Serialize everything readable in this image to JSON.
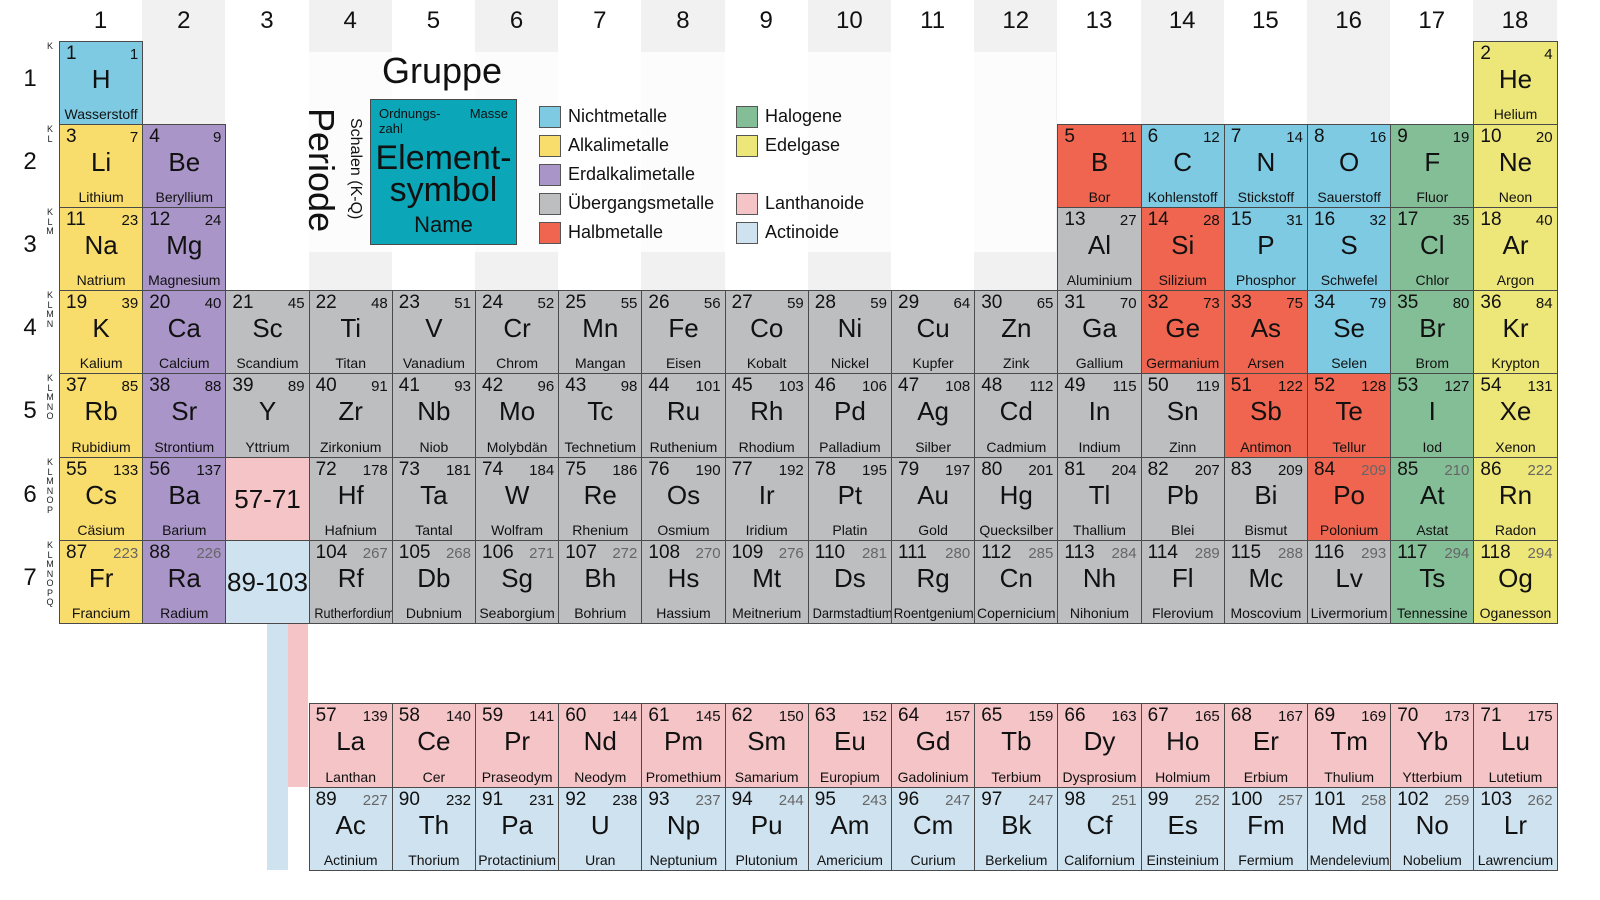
{
  "groups": [
    "1",
    "2",
    "3",
    "4",
    "5",
    "6",
    "7",
    "8",
    "9",
    "10",
    "11",
    "12",
    "13",
    "14",
    "15",
    "16",
    "17",
    "18"
  ],
  "periods": [
    "1",
    "2",
    "3",
    "4",
    "5",
    "6",
    "7"
  ],
  "shell_letters": "KLMNOPQ",
  "colors": {
    "nm": "#7ecae3",
    "alk": "#f8dc6c",
    "ea": "#a995c8",
    "tm": "#bcbec0",
    "hm": "#f0654f",
    "hal": "#84be97",
    "ng": "#ede678",
    "la": "#f4c4c7",
    "ac": "#cfe2ef",
    "key": "#0ba6b8",
    "stripe": "#f1f1f1"
  },
  "legend": {
    "gruppe": "Gruppe",
    "periode": "Periode",
    "schalen": "Schalen (K-Q)",
    "key": {
      "ordnungszahl_1": "Ordnungs-",
      "ordnungszahl_2": "zahl",
      "masse": "Masse",
      "symbol_1": "Element-",
      "symbol_2": "symbol",
      "name": "Name"
    },
    "items": [
      {
        "cat": "nm",
        "label": "Nichtmetalle"
      },
      {
        "cat": "alk",
        "label": "Alkalimetalle"
      },
      {
        "cat": "ea",
        "label": "Erdalkalimetalle"
      },
      {
        "cat": "tm",
        "label": "Übergangsmetalle"
      },
      {
        "cat": "hm",
        "label": "Halbmetalle"
      },
      {
        "cat": "hal",
        "label": "Halogene"
      },
      {
        "cat": "ng",
        "label": "Edelgase"
      },
      {
        "cat": "la",
        "label": "Lanthanoide"
      },
      {
        "cat": "ac",
        "label": "Actinoide"
      }
    ]
  },
  "placeholders": [
    {
      "label": "57-71",
      "cat": "la",
      "p": 6,
      "g": 3
    },
    {
      "label": "89-103",
      "cat": "ac",
      "p": 7,
      "g": 3
    }
  ],
  "elements": [
    {
      "z": "1",
      "s": "H",
      "n": "Wasserstoff",
      "m": "1",
      "c": "nm",
      "p": 1,
      "g": 1
    },
    {
      "z": "2",
      "s": "He",
      "n": "Helium",
      "m": "4",
      "c": "ng",
      "p": 1,
      "g": 18
    },
    {
      "z": "3",
      "s": "Li",
      "n": "Lithium",
      "m": "7",
      "c": "alk",
      "p": 2,
      "g": 1
    },
    {
      "z": "4",
      "s": "Be",
      "n": "Beryllium",
      "m": "9",
      "c": "ea",
      "p": 2,
      "g": 2
    },
    {
      "z": "5",
      "s": "B",
      "n": "Bor",
      "m": "11",
      "c": "hm",
      "p": 2,
      "g": 13
    },
    {
      "z": "6",
      "s": "C",
      "n": "Kohlenstoff",
      "m": "12",
      "c": "nm",
      "p": 2,
      "g": 14
    },
    {
      "z": "7",
      "s": "N",
      "n": "Stickstoff",
      "m": "14",
      "c": "nm",
      "p": 2,
      "g": 15
    },
    {
      "z": "8",
      "s": "O",
      "n": "Sauerstoff",
      "m": "16",
      "c": "nm",
      "p": 2,
      "g": 16
    },
    {
      "z": "9",
      "s": "F",
      "n": "Fluor",
      "m": "19",
      "c": "hal",
      "p": 2,
      "g": 17
    },
    {
      "z": "10",
      "s": "Ne",
      "n": "Neon",
      "m": "20",
      "c": "ng",
      "p": 2,
      "g": 18
    },
    {
      "z": "11",
      "s": "Na",
      "n": "Natrium",
      "m": "23",
      "c": "alk",
      "p": 3,
      "g": 1
    },
    {
      "z": "12",
      "s": "Mg",
      "n": "Magnesium",
      "m": "24",
      "c": "ea",
      "p": 3,
      "g": 2
    },
    {
      "z": "13",
      "s": "Al",
      "n": "Aluminium",
      "m": "27",
      "c": "tm",
      "p": 3,
      "g": 13
    },
    {
      "z": "14",
      "s": "Si",
      "n": "Silizium",
      "m": "28",
      "c": "hm",
      "p": 3,
      "g": 14
    },
    {
      "z": "15",
      "s": "P",
      "n": "Phosphor",
      "m": "31",
      "c": "nm",
      "p": 3,
      "g": 15
    },
    {
      "z": "16",
      "s": "S",
      "n": "Schwefel",
      "m": "32",
      "c": "nm",
      "p": 3,
      "g": 16
    },
    {
      "z": "17",
      "s": "Cl",
      "n": "Chlor",
      "m": "35",
      "c": "hal",
      "p": 3,
      "g": 17
    },
    {
      "z": "18",
      "s": "Ar",
      "n": "Argon",
      "m": "40",
      "c": "ng",
      "p": 3,
      "g": 18
    },
    {
      "z": "19",
      "s": "K",
      "n": "Kalium",
      "m": "39",
      "c": "alk",
      "p": 4,
      "g": 1
    },
    {
      "z": "20",
      "s": "Ca",
      "n": "Calcium",
      "m": "40",
      "c": "ea",
      "p": 4,
      "g": 2
    },
    {
      "z": "21",
      "s": "Sc",
      "n": "Scandium",
      "m": "45",
      "c": "tm",
      "p": 4,
      "g": 3
    },
    {
      "z": "22",
      "s": "Ti",
      "n": "Titan",
      "m": "48",
      "c": "tm",
      "p": 4,
      "g": 4
    },
    {
      "z": "23",
      "s": "V",
      "n": "Vanadium",
      "m": "51",
      "c": "tm",
      "p": 4,
      "g": 5
    },
    {
      "z": "24",
      "s": "Cr",
      "n": "Chrom",
      "m": "52",
      "c": "tm",
      "p": 4,
      "g": 6
    },
    {
      "z": "25",
      "s": "Mn",
      "n": "Mangan",
      "m": "55",
      "c": "tm",
      "p": 4,
      "g": 7
    },
    {
      "z": "26",
      "s": "Fe",
      "n": "Eisen",
      "m": "56",
      "c": "tm",
      "p": 4,
      "g": 8
    },
    {
      "z": "27",
      "s": "Co",
      "n": "Kobalt",
      "m": "59",
      "c": "tm",
      "p": 4,
      "g": 9
    },
    {
      "z": "28",
      "s": "Ni",
      "n": "Nickel",
      "m": "59",
      "c": "tm",
      "p": 4,
      "g": 10
    },
    {
      "z": "29",
      "s": "Cu",
      "n": "Kupfer",
      "m": "64",
      "c": "tm",
      "p": 4,
      "g": 11
    },
    {
      "z": "30",
      "s": "Zn",
      "n": "Zink",
      "m": "65",
      "c": "tm",
      "p": 4,
      "g": 12
    },
    {
      "z": "31",
      "s": "Ga",
      "n": "Gallium",
      "m": "70",
      "c": "tm",
      "p": 4,
      "g": 13
    },
    {
      "z": "32",
      "s": "Ge",
      "n": "Germanium",
      "m": "73",
      "c": "hm",
      "p": 4,
      "g": 14
    },
    {
      "z": "33",
      "s": "As",
      "n": "Arsen",
      "m": "75",
      "c": "hm",
      "p": 4,
      "g": 15
    },
    {
      "z": "34",
      "s": "Se",
      "n": "Selen",
      "m": "79",
      "c": "nm",
      "p": 4,
      "g": 16
    },
    {
      "z": "35",
      "s": "Br",
      "n": "Brom",
      "m": "80",
      "c": "hal",
      "p": 4,
      "g": 17
    },
    {
      "z": "36",
      "s": "Kr",
      "n": "Krypton",
      "m": "84",
      "c": "ng",
      "p": 4,
      "g": 18
    },
    {
      "z": "37",
      "s": "Rb",
      "n": "Rubidium",
      "m": "85",
      "c": "alk",
      "p": 5,
      "g": 1
    },
    {
      "z": "38",
      "s": "Sr",
      "n": "Strontium",
      "m": "88",
      "c": "ea",
      "p": 5,
      "g": 2
    },
    {
      "z": "39",
      "s": "Y",
      "n": "Yttrium",
      "m": "89",
      "c": "tm",
      "p": 5,
      "g": 3
    },
    {
      "z": "40",
      "s": "Zr",
      "n": "Zirkonium",
      "m": "91",
      "c": "tm",
      "p": 5,
      "g": 4
    },
    {
      "z": "41",
      "s": "Nb",
      "n": "Niob",
      "m": "93",
      "c": "tm",
      "p": 5,
      "g": 5
    },
    {
      "z": "42",
      "s": "Mo",
      "n": "Molybdän",
      "m": "96",
      "c": "tm",
      "p": 5,
      "g": 6
    },
    {
      "z": "43",
      "s": "Tc",
      "n": "Technetium",
      "m": "98",
      "c": "tm",
      "p": 5,
      "g": 7
    },
    {
      "z": "44",
      "s": "Ru",
      "n": "Ruthenium",
      "m": "101",
      "c": "tm",
      "p": 5,
      "g": 8
    },
    {
      "z": "45",
      "s": "Rh",
      "n": "Rhodium",
      "m": "103",
      "c": "tm",
      "p": 5,
      "g": 9
    },
    {
      "z": "46",
      "s": "Pd",
      "n": "Palladium",
      "m": "106",
      "c": "tm",
      "p": 5,
      "g": 10
    },
    {
      "z": "47",
      "s": "Ag",
      "n": "Silber",
      "m": "108",
      "c": "tm",
      "p": 5,
      "g": 11
    },
    {
      "z": "48",
      "s": "Cd",
      "n": "Cadmium",
      "m": "112",
      "c": "tm",
      "p": 5,
      "g": 12
    },
    {
      "z": "49",
      "s": "In",
      "n": "Indium",
      "m": "115",
      "c": "tm",
      "p": 5,
      "g": 13
    },
    {
      "z": "50",
      "s": "Sn",
      "n": "Zinn",
      "m": "119",
      "c": "tm",
      "p": 5,
      "g": 14
    },
    {
      "z": "51",
      "s": "Sb",
      "n": "Antimon",
      "m": "122",
      "c": "hm",
      "p": 5,
      "g": 15
    },
    {
      "z": "52",
      "s": "Te",
      "n": "Tellur",
      "m": "128",
      "c": "hm",
      "p": 5,
      "g": 16
    },
    {
      "z": "53",
      "s": "I",
      "n": "Iod",
      "m": "127",
      "c": "hal",
      "p": 5,
      "g": 17
    },
    {
      "z": "54",
      "s": "Xe",
      "n": "Xenon",
      "m": "131",
      "c": "ng",
      "p": 5,
      "g": 18
    },
    {
      "z": "55",
      "s": "Cs",
      "n": "Cäsium",
      "m": "133",
      "c": "alk",
      "p": 6,
      "g": 1
    },
    {
      "z": "56",
      "s": "Ba",
      "n": "Barium",
      "m": "137",
      "c": "ea",
      "p": 6,
      "g": 2
    },
    {
      "z": "72",
      "s": "Hf",
      "n": "Hafnium",
      "m": "178",
      "c": "tm",
      "p": 6,
      "g": 4
    },
    {
      "z": "73",
      "s": "Ta",
      "n": "Tantal",
      "m": "181",
      "c": "tm",
      "p": 6,
      "g": 5
    },
    {
      "z": "74",
      "s": "W",
      "n": "Wolfram",
      "m": "184",
      "c": "tm",
      "p": 6,
      "g": 6
    },
    {
      "z": "75",
      "s": "Re",
      "n": "Rhenium",
      "m": "186",
      "c": "tm",
      "p": 6,
      "g": 7
    },
    {
      "z": "76",
      "s": "Os",
      "n": "Osmium",
      "m": "190",
      "c": "tm",
      "p": 6,
      "g": 8
    },
    {
      "z": "77",
      "s": "Ir",
      "n": "Iridium",
      "m": "192",
      "c": "tm",
      "p": 6,
      "g": 9
    },
    {
      "z": "78",
      "s": "Pt",
      "n": "Platin",
      "m": "195",
      "c": "tm",
      "p": 6,
      "g": 10
    },
    {
      "z": "79",
      "s": "Au",
      "n": "Gold",
      "m": "197",
      "c": "tm",
      "p": 6,
      "g": 11
    },
    {
      "z": "80",
      "s": "Hg",
      "n": "Quecksilber",
      "m": "201",
      "c": "tm",
      "p": 6,
      "g": 12
    },
    {
      "z": "81",
      "s": "Tl",
      "n": "Thallium",
      "m": "204",
      "c": "tm",
      "p": 6,
      "g": 13
    },
    {
      "z": "82",
      "s": "Pb",
      "n": "Blei",
      "m": "207",
      "c": "tm",
      "p": 6,
      "g": 14
    },
    {
      "z": "83",
      "s": "Bi",
      "n": "Bismut",
      "m": "209",
      "c": "tm",
      "p": 6,
      "g": 15
    },
    {
      "z": "84",
      "s": "Po",
      "n": "Polonium",
      "m": "209",
      "c": "hm",
      "p": 6,
      "g": 16,
      "gray": true
    },
    {
      "z": "85",
      "s": "At",
      "n": "Astat",
      "m": "210",
      "c": "hal",
      "p": 6,
      "g": 17,
      "gray": true
    },
    {
      "z": "86",
      "s": "Rn",
      "n": "Radon",
      "m": "222",
      "c": "ng",
      "p": 6,
      "g": 18,
      "gray": true
    },
    {
      "z": "87",
      "s": "Fr",
      "n": "Francium",
      "m": "223",
      "c": "alk",
      "p": 7,
      "g": 1,
      "gray": true
    },
    {
      "z": "88",
      "s": "Ra",
      "n": "Radium",
      "m": "226",
      "c": "ea",
      "p": 7,
      "g": 2,
      "gray": true
    },
    {
      "z": "104",
      "s": "Rf",
      "n": "Rutherfordium",
      "m": "267",
      "c": "tm",
      "p": 7,
      "g": 4,
      "gray": true
    },
    {
      "z": "105",
      "s": "Db",
      "n": "Dubnium",
      "m": "268",
      "c": "tm",
      "p": 7,
      "g": 5,
      "gray": true
    },
    {
      "z": "106",
      "s": "Sg",
      "n": "Seaborgium",
      "m": "271",
      "c": "tm",
      "p": 7,
      "g": 6,
      "gray": true
    },
    {
      "z": "107",
      "s": "Bh",
      "n": "Bohrium",
      "m": "272",
      "c": "tm",
      "p": 7,
      "g": 7,
      "gray": true
    },
    {
      "z": "108",
      "s": "Hs",
      "n": "Hassium",
      "m": "270",
      "c": "tm",
      "p": 7,
      "g": 8,
      "gray": true
    },
    {
      "z": "109",
      "s": "Mt",
      "n": "Meitnerium",
      "m": "276",
      "c": "tm",
      "p": 7,
      "g": 9,
      "gray": true
    },
    {
      "z": "110",
      "s": "Ds",
      "n": "Darmstadtium",
      "m": "281",
      "c": "tm",
      "p": 7,
      "g": 10,
      "gray": true
    },
    {
      "z": "111",
      "s": "Rg",
      "n": "Roentgenium",
      "m": "280",
      "c": "tm",
      "p": 7,
      "g": 11,
      "gray": true
    },
    {
      "z": "112",
      "s": "Cn",
      "n": "Copernicium",
      "m": "285",
      "c": "tm",
      "p": 7,
      "g": 12,
      "gray": true
    },
    {
      "z": "113",
      "s": "Nh",
      "n": "Nihonium",
      "m": "284",
      "c": "tm",
      "p": 7,
      "g": 13,
      "gray": true
    },
    {
      "z": "114",
      "s": "Fl",
      "n": "Flerovium",
      "m": "289",
      "c": "tm",
      "p": 7,
      "g": 14,
      "gray": true
    },
    {
      "z": "115",
      "s": "Mc",
      "n": "Moscovium",
      "m": "288",
      "c": "tm",
      "p": 7,
      "g": 15,
      "gray": true
    },
    {
      "z": "116",
      "s": "Lv",
      "n": "Livermorium",
      "m": "293",
      "c": "tm",
      "p": 7,
      "g": 16,
      "gray": true
    },
    {
      "z": "117",
      "s": "Ts",
      "n": "Tennessine",
      "m": "294",
      "c": "hal",
      "p": 7,
      "g": 17,
      "gray": true
    },
    {
      "z": "118",
      "s": "Og",
      "n": "Oganesson",
      "m": "294",
      "c": "ng",
      "p": 7,
      "g": 18,
      "gray": true
    },
    {
      "z": "57",
      "s": "La",
      "n": "Lanthan",
      "m": "139",
      "c": "la",
      "p": "la",
      "g": 4
    },
    {
      "z": "58",
      "s": "Ce",
      "n": "Cer",
      "m": "140",
      "c": "la",
      "p": "la",
      "g": 5
    },
    {
      "z": "59",
      "s": "Pr",
      "n": "Praseodym",
      "m": "141",
      "c": "la",
      "p": "la",
      "g": 6
    },
    {
      "z": "60",
      "s": "Nd",
      "n": "Neodym",
      "m": "144",
      "c": "la",
      "p": "la",
      "g": 7
    },
    {
      "z": "61",
      "s": "Pm",
      "n": "Promethium",
      "m": "145",
      "c": "la",
      "p": "la",
      "g": 8
    },
    {
      "z": "62",
      "s": "Sm",
      "n": "Samarium",
      "m": "150",
      "c": "la",
      "p": "la",
      "g": 9
    },
    {
      "z": "63",
      "s": "Eu",
      "n": "Europium",
      "m": "152",
      "c": "la",
      "p": "la",
      "g": 10
    },
    {
      "z": "64",
      "s": "Gd",
      "n": "Gadolinium",
      "m": "157",
      "c": "la",
      "p": "la",
      "g": 11
    },
    {
      "z": "65",
      "s": "Tb",
      "n": "Terbium",
      "m": "159",
      "c": "la",
      "p": "la",
      "g": 12
    },
    {
      "z": "66",
      "s": "Dy",
      "n": "Dysprosium",
      "m": "163",
      "c": "la",
      "p": "la",
      "g": 13
    },
    {
      "z": "67",
      "s": "Ho",
      "n": "Holmium",
      "m": "165",
      "c": "la",
      "p": "la",
      "g": 14
    },
    {
      "z": "68",
      "s": "Er",
      "n": "Erbium",
      "m": "167",
      "c": "la",
      "p": "la",
      "g": 15
    },
    {
      "z": "69",
      "s": "Tm",
      "n": "Thulium",
      "m": "169",
      "c": "la",
      "p": "la",
      "g": 16
    },
    {
      "z": "70",
      "s": "Yb",
      "n": "Ytterbium",
      "m": "173",
      "c": "la",
      "p": "la",
      "g": 17
    },
    {
      "z": "71",
      "s": "Lu",
      "n": "Lutetium",
      "m": "175",
      "c": "la",
      "p": "la",
      "g": 18
    },
    {
      "z": "89",
      "s": "Ac",
      "n": "Actinium",
      "m": "227",
      "c": "ac",
      "p": "ac",
      "g": 4,
      "gray": true
    },
    {
      "z": "90",
      "s": "Th",
      "n": "Thorium",
      "m": "232",
      "c": "ac",
      "p": "ac",
      "g": 5
    },
    {
      "z": "91",
      "s": "Pa",
      "n": "Protactinium",
      "m": "231",
      "c": "ac",
      "p": "ac",
      "g": 6
    },
    {
      "z": "92",
      "s": "U",
      "n": "Uran",
      "m": "238",
      "c": "ac",
      "p": "ac",
      "g": 7
    },
    {
      "z": "93",
      "s": "Np",
      "n": "Neptunium",
      "m": "237",
      "c": "ac",
      "p": "ac",
      "g": 8,
      "gray": true
    },
    {
      "z": "94",
      "s": "Pu",
      "n": "Plutonium",
      "m": "244",
      "c": "ac",
      "p": "ac",
      "g": 9,
      "gray": true
    },
    {
      "z": "95",
      "s": "Am",
      "n": "Americium",
      "m": "243",
      "c": "ac",
      "p": "ac",
      "g": 10,
      "gray": true
    },
    {
      "z": "96",
      "s": "Cm",
      "n": "Curium",
      "m": "247",
      "c": "ac",
      "p": "ac",
      "g": 11,
      "gray": true
    },
    {
      "z": "97",
      "s": "Bk",
      "n": "Berkelium",
      "m": "247",
      "c": "ac",
      "p": "ac",
      "g": 12,
      "gray": true
    },
    {
      "z": "98",
      "s": "Cf",
      "n": "Californium",
      "m": "251",
      "c": "ac",
      "p": "ac",
      "g": 13,
      "gray": true
    },
    {
      "z": "99",
      "s": "Es",
      "n": "Einsteinium",
      "m": "252",
      "c": "ac",
      "p": "ac",
      "g": 14,
      "gray": true
    },
    {
      "z": "100",
      "s": "Fm",
      "n": "Fermium",
      "m": "257",
      "c": "ac",
      "p": "ac",
      "g": 15,
      "gray": true
    },
    {
      "z": "101",
      "s": "Md",
      "n": "Mendelevium",
      "m": "258",
      "c": "ac",
      "p": "ac",
      "g": 16,
      "gray": true
    },
    {
      "z": "102",
      "s": "No",
      "n": "Nobelium",
      "m": "259",
      "c": "ac",
      "p": "ac",
      "g": 17,
      "gray": true
    },
    {
      "z": "103",
      "s": "Lr",
      "n": "Lawrencium",
      "m": "262",
      "c": "ac",
      "p": "ac",
      "g": 18,
      "gray": true
    }
  ]
}
